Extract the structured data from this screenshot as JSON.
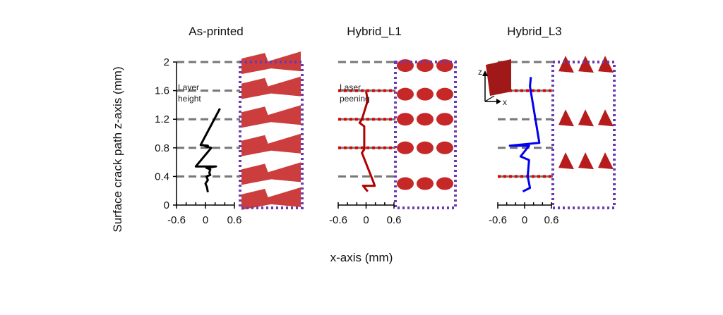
{
  "chart_data": {
    "type": "line",
    "ylabel": "Surface crack path z-axis (mm)",
    "xlabel": "x-axis (mm)",
    "ylim": [
      0,
      2
    ],
    "xlim": [
      -0.6,
      0.6
    ],
    "yticks": [
      "0",
      "0.4",
      "0.8",
      "1.2",
      "1.6",
      "2"
    ],
    "xticks": [
      "-0.6",
      "0",
      "0.6"
    ],
    "panels": [
      {
        "title": "As-printed",
        "color": "#000000",
        "annotation": [
          "Layer",
          "height"
        ],
        "gray_lines": [
          0.4,
          0.8,
          1.2,
          1.6,
          2.0
        ],
        "red_lines": [],
        "path": [
          [
            0.05,
            0.18
          ],
          [
            0.03,
            0.25
          ],
          [
            0.0,
            0.3
          ],
          [
            0.05,
            0.35
          ],
          [
            0.02,
            0.4
          ],
          [
            0.1,
            0.42
          ],
          [
            0.08,
            0.45
          ],
          [
            0.1,
            0.5
          ],
          [
            0.02,
            0.52
          ],
          [
            0.22,
            0.54
          ],
          [
            -0.2,
            0.54
          ],
          [
            0.12,
            0.8
          ],
          [
            0.0,
            0.82
          ],
          [
            0.05,
            0.83
          ],
          [
            -0.1,
            0.84
          ],
          [
            0.3,
            1.35
          ]
        ]
      },
      {
        "title": "Hybrid_L1",
        "color": "#b00000",
        "annotation": [
          "Laser",
          "peening"
        ],
        "gray_lines": [
          0.4,
          2.0
        ],
        "red_lines": [
          0.8,
          1.2,
          1.6
        ],
        "path": [
          [
            0.035,
            0.19
          ],
          [
            -0.065,
            0.27
          ],
          [
            0.185,
            0.27
          ],
          [
            0.16,
            0.32
          ],
          [
            -0.09,
            0.73
          ],
          [
            -0.04,
            0.78
          ],
          [
            -0.04,
            1.1
          ],
          [
            -0.14,
            1.15
          ],
          [
            -0.09,
            1.2
          ],
          [
            0.035,
            1.46
          ],
          [
            0.0,
            1.59
          ]
        ]
      },
      {
        "title": "Hybrid_L3",
        "color": "#0000ee",
        "annotation": [
          "z",
          "x"
        ],
        "gray_lines": [
          0.8,
          1.2,
          2.0
        ],
        "red_lines": [
          0.4,
          1.6
        ],
        "path": [
          [
            -0.04,
            0.19
          ],
          [
            0.12,
            0.24
          ],
          [
            0.07,
            0.4
          ],
          [
            0.1,
            0.63
          ],
          [
            -0.09,
            0.68
          ],
          [
            0.1,
            0.83
          ],
          [
            -0.33,
            0.83
          ],
          [
            0.33,
            0.87
          ],
          [
            0.12,
            1.66
          ],
          [
            0.14,
            1.79
          ]
        ]
      }
    ]
  }
}
